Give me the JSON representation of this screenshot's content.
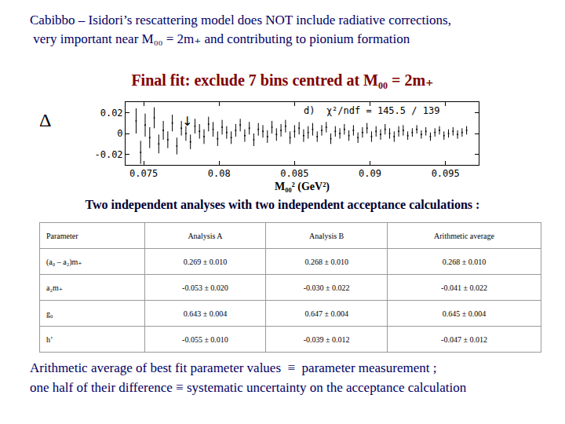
{
  "header": {
    "lines": [
      "Cabibbo – Isidori’s rescattering model does NOT include radiative corrections,",
      " very important near M₀₀ = 2m₊ and contributing to pionium formation"
    ]
  },
  "subheader": "Final fit:  exclude  7 bins centred at  M₀₀ = 2m₊",
  "chart_data": {
    "type": "scatter",
    "y_label": "Δ",
    "x_label": "M₀₀² (GeV²)",
    "annotations": [
      {
        "text": "d)  χ²/ndf = 145.5 / 139"
      },
      {
        "text": "↓",
        "x": 0.0779,
        "y": 0.012
      }
    ],
    "x": [
      0.0745,
      0.0748,
      0.0751,
      0.0754,
      0.0757,
      0.076,
      0.0763,
      0.0766,
      0.0769,
      0.0772,
      0.0775,
      0.0778,
      0.0781,
      0.0784,
      0.0787,
      0.079,
      0.0793,
      0.0796,
      0.0799,
      0.0802,
      0.0805,
      0.0808,
      0.0811,
      0.0814,
      0.0817,
      0.082,
      0.0823,
      0.0826,
      0.0829,
      0.0832,
      0.0835,
      0.0838,
      0.0841,
      0.0844,
      0.0847,
      0.085,
      0.0853,
      0.0856,
      0.0859,
      0.0862,
      0.0865,
      0.0868,
      0.0871,
      0.0874,
      0.0877,
      0.088,
      0.0883,
      0.0886,
      0.0889,
      0.0892,
      0.0895,
      0.0898,
      0.0901,
      0.0904,
      0.0907,
      0.091,
      0.0913,
      0.0916,
      0.0919,
      0.0922,
      0.0925,
      0.0928,
      0.0931,
      0.0934,
      0.0937,
      0.094,
      0.0943,
      0.0946,
      0.0949,
      0.0952,
      0.0955,
      0.0958,
      0.0961,
      0.0964
    ],
    "values": [
      0.012,
      -0.018,
      0.008,
      -0.004,
      0.015,
      -0.01,
      0.003,
      -0.006,
      0.01,
      -0.012,
      0.005,
      0.0,
      -0.008,
      0.007,
      0.002,
      -0.003,
      0.009,
      0.004,
      -0.005,
      0.006,
      0.001,
      -0.004,
      0.003,
      0.008,
      -0.002,
      0.005,
      -0.006,
      0.004,
      0.002,
      -0.003,
      0.006,
      -0.001,
      0.003,
      0.007,
      -0.004,
      0.002,
      0.005,
      -0.002,
      0.001,
      0.004,
      -0.003,
      0.003,
      0.006,
      -0.005,
      0.002,
      0.0,
      0.004,
      -0.002,
      0.003,
      -0.004,
      0.001,
      0.005,
      -0.003,
      0.002,
      -0.001,
      0.004,
      0.0,
      -0.003,
      0.002,
      0.003,
      -0.002,
      0.001,
      0.004,
      -0.001,
      0.002,
      -0.003,
      0.001,
      0.003,
      -0.002,
      0.0,
      0.002,
      -0.001,
      0.001,
      0.003
    ],
    "errors": [
      0.012,
      0.011,
      0.011,
      0.01,
      0.01,
      0.009,
      0.009,
      0.008,
      0.008,
      0.008,
      0.007,
      0.007,
      0.007,
      0.007,
      0.007,
      0.007,
      0.007,
      0.007,
      0.007,
      0.007,
      0.006,
      0.006,
      0.006,
      0.006,
      0.006,
      0.006,
      0.006,
      0.006,
      0.006,
      0.006,
      0.006,
      0.006,
      0.006,
      0.006,
      0.006,
      0.006,
      0.006,
      0.006,
      0.006,
      0.006,
      0.005,
      0.005,
      0.005,
      0.005,
      0.005,
      0.005,
      0.005,
      0.005,
      0.005,
      0.005,
      0.005,
      0.005,
      0.005,
      0.005,
      0.005,
      0.005,
      0.005,
      0.005,
      0.005,
      0.005,
      0.004,
      0.004,
      0.004,
      0.004,
      0.004,
      0.004,
      0.004,
      0.004,
      0.004,
      0.004,
      0.004,
      0.004,
      0.004,
      0.004
    ],
    "color": "#000000",
    "marker": "point",
    "xlim": [
      0.0738,
      0.0972
    ],
    "xticks": [
      0.075,
      0.08,
      0.085,
      0.09,
      0.095
    ],
    "ylim": [
      -0.03,
      0.03
    ],
    "yticks": [
      -0.02,
      0,
      0.02
    ],
    "grid": false
  },
  "caption": "Two independent analyses with two independent acceptance calculations :",
  "table": {
    "columns": [
      "Parameter",
      "Analysis A",
      "Analysis B",
      "Arithmetic average"
    ],
    "rows": [
      [
        "(a₀ – a₂)m₊",
        "0.269 ± 0.010",
        "0.268 ± 0.010",
        "0.268 ± 0.010"
      ],
      [
        "a₂m₊",
        "-0.053 ± 0.020",
        "-0.030 ± 0.022",
        "-0.041 ± 0.022"
      ],
      [
        "g₀",
        "0.643 ± 0.004",
        "0.647 ± 0.004",
        "0.645 ± 0.004"
      ],
      [
        "h’",
        "-0.055 ± 0.010",
        "-0.039 ± 0.012",
        "-0.047 ± 0.012"
      ]
    ]
  },
  "footer": {
    "lines": [
      "Arithmetic average of best fit parameter values  ≡  parameter measurement ;",
      "one half of their difference ≡ systematic uncertainty on the acceptance calculation"
    ]
  }
}
